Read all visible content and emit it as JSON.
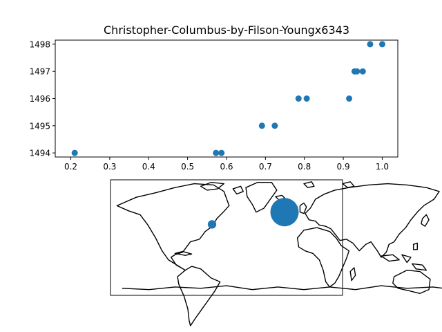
{
  "figure": {
    "background": "#ffffff",
    "point_color": "#1f77b4"
  },
  "chart_data": [
    {
      "type": "scatter",
      "title": "Christopher-Columbus-by-Filson-Youngx6343",
      "xlabel": "",
      "ylabel": "",
      "xlim": [
        0.16,
        1.04
      ],
      "ylim": [
        1493.85,
        1498.15
      ],
      "xticks": [
        "0.2",
        "0.3",
        "0.4",
        "0.5",
        "0.6",
        "0.7",
        "0.8",
        "0.9",
        "1.0"
      ],
      "yticks": [
        "1494",
        "1495",
        "1496",
        "1497",
        "1498"
      ],
      "grid": false,
      "points": [
        {
          "x": 0.21,
          "y": 1494
        },
        {
          "x": 0.573,
          "y": 1494
        },
        {
          "x": 0.587,
          "y": 1494
        },
        {
          "x": 0.691,
          "y": 1495
        },
        {
          "x": 0.724,
          "y": 1495
        },
        {
          "x": 0.785,
          "y": 1496
        },
        {
          "x": 0.806,
          "y": 1496
        },
        {
          "x": 0.915,
          "y": 1496
        },
        {
          "x": 0.929,
          "y": 1497
        },
        {
          "x": 0.935,
          "y": 1497
        },
        {
          "x": 0.95,
          "y": 1497
        },
        {
          "x": 0.969,
          "y": 1498
        },
        {
          "x": 1.0,
          "y": 1498
        }
      ]
    },
    {
      "type": "bubble-map",
      "projection": "equirectangular",
      "basemap": "world coastlines",
      "lon_range": [
        -180,
        180
      ],
      "lat_range": [
        -90,
        90
      ],
      "bubbles": [
        {
          "lon": 0,
          "lat": 40,
          "size": 2.0
        },
        {
          "lon": -75,
          "lat": 21,
          "size": 0.6
        }
      ]
    }
  ]
}
